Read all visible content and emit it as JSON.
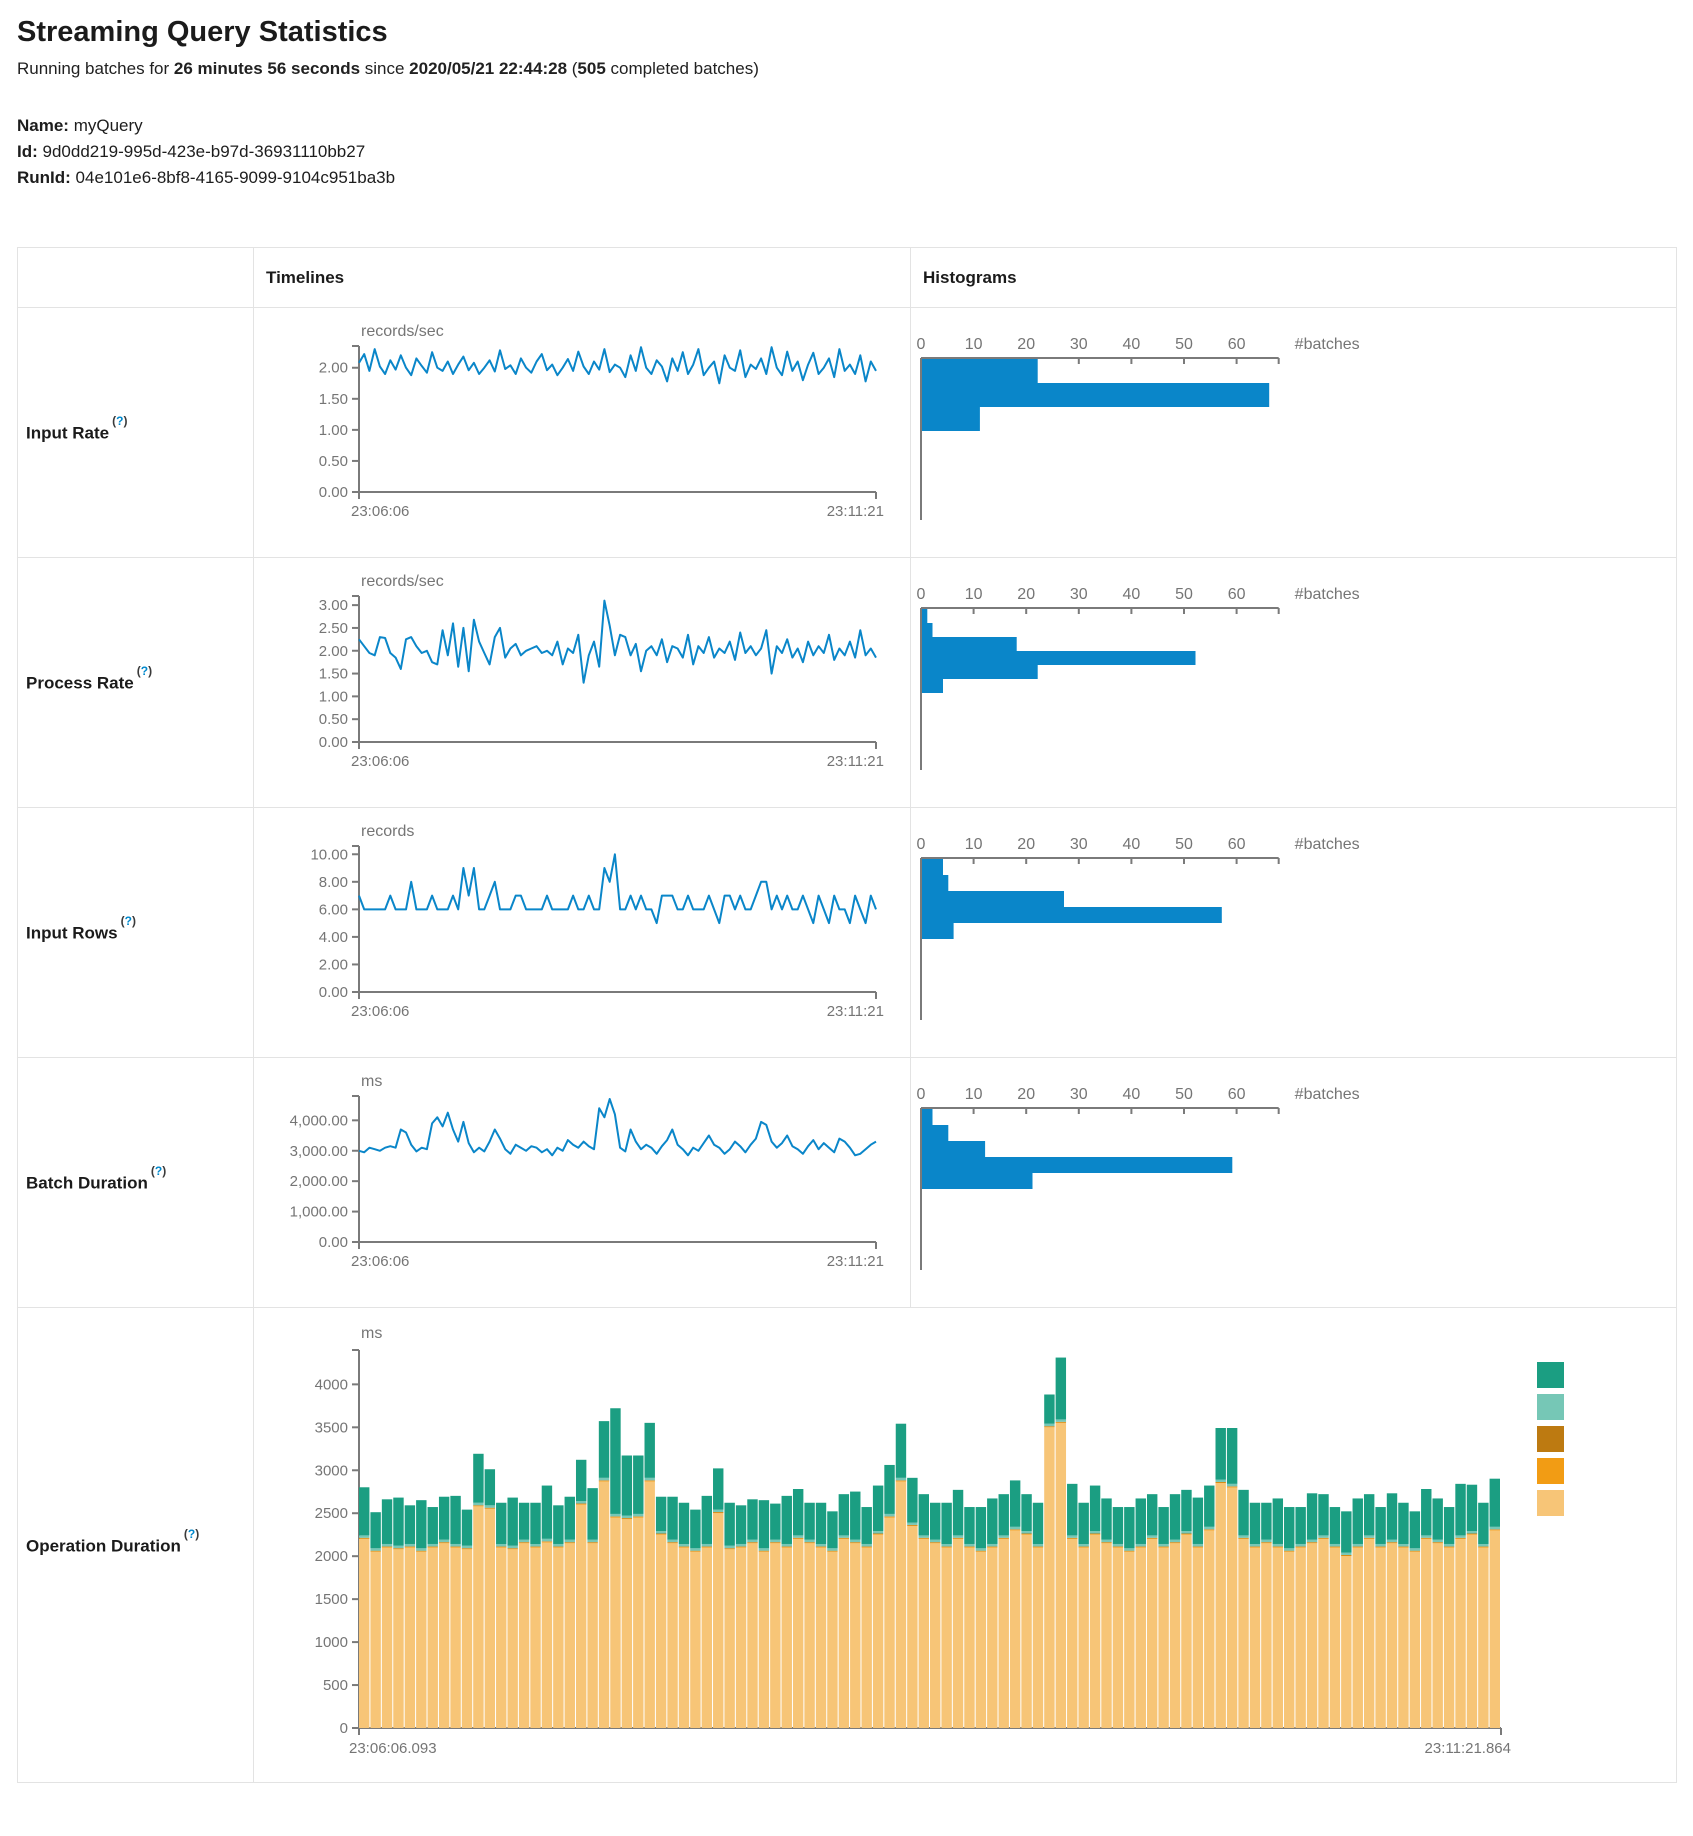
{
  "header": {
    "title": "Streaming Query Statistics",
    "subtitle": {
      "prefix": "Running batches for ",
      "duration": "26 minutes 56 seconds",
      "mid": " since ",
      "start_time": "2020/05/21 22:44:28",
      "paren": " (",
      "count": "505",
      "suffix": " completed batches)"
    },
    "meta": {
      "name_label": "Name:",
      "name_value": " myQuery",
      "id_label": "Id:",
      "id_value": " 9d0dd219-995d-423e-b97d-36931110bb27",
      "runid_label": "RunId:",
      "runid_value": " 04e101e6-8bf8-4165-9099-9104c951ba3b"
    }
  },
  "table": {
    "timelines_header": "Timelines",
    "histograms_header": "Histograms",
    "help": {
      "open": "(",
      "q": "?",
      "close": ")"
    },
    "rows": [
      {
        "label": "Input Rate"
      },
      {
        "label": "Process Rate"
      },
      {
        "label": "Input Rows"
      },
      {
        "label": "Batch Duration"
      },
      {
        "label": "Operation Duration"
      }
    ]
  },
  "colors": {
    "line": "#0a86c9",
    "hist_bar": "#0a86c9",
    "axis": "#7a7a7a",
    "tick_text": "#757575",
    "teal": "#1b9e82",
    "light_teal": "#76c7b6",
    "dark_orange": "#bd7a11",
    "orange": "#f29c14",
    "tan": "#f7c577"
  },
  "chart_data": [
    {
      "name": "input-rate",
      "timeline": {
        "type": "line",
        "unit": "records/sec",
        "x_start": "23:06:06",
        "x_end": "23:11:21",
        "ylim": [
          0,
          2.35
        ],
        "yticks": [
          0,
          0.5,
          1,
          1.5,
          2
        ],
        "ytick_labels": [
          "0.00",
          "0.50",
          "1.00",
          "1.50",
          "2.00"
        ],
        "values": [
          2.08,
          2.22,
          1.95,
          2.3,
          2.02,
          1.9,
          2.12,
          1.97,
          2.2,
          2.0,
          1.88,
          2.15,
          2.03,
          1.92,
          2.25,
          2.0,
          1.95,
          2.1,
          1.9,
          2.05,
          2.18,
          1.96,
          2.08,
          1.9,
          2.0,
          2.12,
          1.94,
          2.28,
          1.98,
          2.04,
          1.9,
          2.15,
          2.0,
          1.92,
          2.1,
          2.22,
          1.96,
          2.05,
          1.88,
          2.0,
          2.14,
          1.95,
          2.26,
          2.02,
          1.9,
          2.1,
          1.97,
          2.3,
          1.93,
          2.05,
          2.0,
          1.85,
          2.2,
          1.95,
          2.33,
          2.0,
          1.9,
          2.12,
          2.02,
          1.78,
          2.15,
          1.95,
          2.25,
          1.9,
          2.05,
          2.3,
          1.88,
          2.0,
          2.1,
          1.75,
          2.2,
          2.0,
          1.95,
          2.28,
          1.85,
          2.05,
          1.98,
          2.15,
          1.9,
          2.33,
          2.0,
          1.88,
          2.26,
          1.95,
          2.1,
          1.8,
          2.05,
          2.24,
          1.9,
          2.0,
          2.15,
          1.85,
          2.3,
          1.95,
          2.05,
          1.9,
          2.2,
          1.78,
          2.1,
          1.95
        ]
      },
      "histogram": {
        "type": "bar",
        "xlabel": "#batches",
        "xticks": [
          0,
          10,
          20,
          30,
          40,
          50,
          60
        ],
        "xlim": [
          0,
          68
        ],
        "bars": [
          22,
          66,
          11
        ],
        "bar_thickness": 24
      }
    },
    {
      "name": "process-rate",
      "timeline": {
        "type": "line",
        "unit": "records/sec",
        "x_start": "23:06:06",
        "x_end": "23:11:21",
        "ylim": [
          0,
          3.2
        ],
        "yticks": [
          0,
          0.5,
          1,
          1.5,
          2,
          2.5,
          3
        ],
        "ytick_labels": [
          "0.00",
          "0.50",
          "1.00",
          "1.50",
          "2.00",
          "2.50",
          "3.00"
        ],
        "values": [
          2.25,
          2.1,
          1.95,
          1.9,
          2.3,
          2.28,
          1.95,
          1.85,
          1.6,
          2.25,
          2.3,
          2.1,
          1.95,
          2.0,
          1.75,
          1.7,
          2.45,
          1.9,
          2.6,
          1.65,
          2.5,
          1.55,
          2.68,
          2.2,
          1.95,
          1.7,
          2.3,
          2.5,
          1.85,
          2.05,
          2.15,
          1.9,
          2.0,
          2.05,
          2.1,
          1.95,
          2.0,
          1.9,
          2.2,
          1.7,
          2.05,
          1.95,
          2.35,
          1.3,
          1.9,
          2.2,
          1.65,
          3.1,
          2.55,
          1.9,
          2.35,
          2.3,
          1.9,
          2.15,
          1.55,
          2.0,
          2.1,
          1.9,
          2.25,
          1.75,
          2.1,
          2.05,
          1.85,
          2.35,
          1.7,
          2.1,
          1.95,
          2.3,
          1.85,
          2.05,
          1.95,
          2.2,
          1.8,
          2.4,
          1.95,
          2.1,
          1.9,
          2.05,
          2.45,
          1.5,
          2.1,
          1.95,
          2.25,
          1.85,
          2.05,
          1.75,
          2.2,
          1.9,
          2.1,
          1.95,
          2.35,
          1.8,
          2.05,
          1.9,
          2.2,
          1.85,
          2.45,
          1.9,
          2.05,
          1.85
        ]
      },
      "histogram": {
        "type": "bar",
        "xlabel": "#batches",
        "xticks": [
          0,
          10,
          20,
          30,
          40,
          50,
          60
        ],
        "xlim": [
          0,
          68
        ],
        "bars": [
          1,
          2,
          18,
          52,
          22,
          4
        ],
        "bar_thickness": 14
      }
    },
    {
      "name": "input-rows",
      "timeline": {
        "type": "line",
        "unit": "records",
        "x_start": "23:06:06",
        "x_end": "23:11:21",
        "ylim": [
          0,
          10.6
        ],
        "yticks": [
          0,
          2,
          4,
          6,
          8,
          10
        ],
        "ytick_labels": [
          "0.00",
          "2.00",
          "4.00",
          "6.00",
          "8.00",
          "10.00"
        ],
        "values": [
          7,
          6,
          6,
          6,
          6,
          6,
          7,
          6,
          6,
          6,
          8,
          6,
          6,
          6,
          7,
          6,
          6,
          6,
          7,
          6,
          9,
          7,
          9,
          6,
          6,
          7,
          8,
          6,
          6,
          6,
          7,
          7,
          6,
          6,
          6,
          6,
          7,
          6,
          6,
          6,
          6,
          7,
          6,
          6,
          7,
          6,
          6,
          9,
          8,
          10,
          6,
          6,
          7,
          6,
          7,
          6,
          6,
          5,
          7,
          7,
          7,
          6,
          6,
          7,
          6,
          6,
          6,
          7,
          6,
          5,
          7,
          7,
          6,
          7,
          6,
          6,
          7,
          8,
          8,
          6,
          7,
          6,
          7,
          6,
          6,
          7,
          6,
          5,
          7,
          6,
          5,
          7,
          6,
          6,
          5,
          7,
          6,
          5,
          7,
          6
        ]
      },
      "histogram": {
        "type": "bar",
        "xlabel": "#batches",
        "xticks": [
          0,
          10,
          20,
          30,
          40,
          50,
          60
        ],
        "xlim": [
          0,
          68
        ],
        "bars": [
          4,
          5,
          27,
          57,
          6
        ],
        "bar_thickness": 16
      }
    },
    {
      "name": "batch-duration",
      "timeline": {
        "type": "line",
        "unit": "ms",
        "x_start": "23:06:06",
        "x_end": "23:11:21",
        "ylim": [
          0,
          4800
        ],
        "yticks": [
          0,
          1000,
          2000,
          3000,
          4000
        ],
        "ytick_labels": [
          "0.00",
          "1,000.00",
          "2,000.00",
          "3,000.00",
          "4,000.00"
        ],
        "values": [
          3000,
          2950,
          3100,
          3050,
          3000,
          3100,
          3150,
          3100,
          3700,
          3600,
          3200,
          2980,
          3100,
          3050,
          3900,
          4100,
          3800,
          4250,
          3700,
          3300,
          3950,
          3250,
          2950,
          3100,
          2980,
          3300,
          3700,
          3400,
          3050,
          2900,
          3200,
          3100,
          3000,
          3150,
          3100,
          2950,
          3050,
          2850,
          3100,
          3000,
          3350,
          3200,
          3100,
          3300,
          3150,
          3050,
          4400,
          4100,
          4700,
          4200,
          3100,
          2980,
          3700,
          3300,
          3050,
          3200,
          3100,
          2900,
          3150,
          3350,
          3700,
          3200,
          3050,
          2850,
          3100,
          3000,
          3250,
          3500,
          3200,
          3100,
          2900,
          3050,
          3300,
          3150,
          2950,
          3200,
          3400,
          3950,
          3850,
          3300,
          3100,
          3250,
          3500,
          3150,
          3050,
          2900,
          3150,
          3350,
          3050,
          3250,
          3100,
          2950,
          3400,
          3300,
          3100,
          2850,
          2900,
          3050,
          3200,
          3300
        ]
      },
      "histogram": {
        "type": "bar",
        "xlabel": "#batches",
        "xticks": [
          0,
          10,
          20,
          30,
          40,
          50,
          60
        ],
        "xlim": [
          0,
          68
        ],
        "bars": [
          2,
          5,
          12,
          59,
          21
        ],
        "bar_thickness": 16
      }
    },
    {
      "name": "operation-duration",
      "timeline": {
        "type": "stacked-bar",
        "unit": "ms",
        "x_start": "23:06:06.093",
        "x_end": "23:11:21.864",
        "ylim": [
          0,
          4400
        ],
        "yticks": [
          0,
          500,
          1000,
          1500,
          2000,
          2500,
          3000,
          3500,
          4000
        ],
        "ytick_labels": [
          "0",
          "500",
          "1000",
          "1500",
          "2000",
          "2500",
          "3000",
          "3500",
          "4000"
        ],
        "legend_order": [
          "teal",
          "light_teal",
          "dark_orange",
          "orange",
          "tan"
        ],
        "series": [
          {
            "name": "series-tan",
            "color_key": "tan",
            "values": [
              2200,
              2050,
              2100,
              2080,
              2100,
              2050,
              2100,
              2150,
              2100,
              2080,
              2580,
              2550,
              2100,
              2080,
              2150,
              2100,
              2160,
              2100,
              2150,
              2600,
              2150,
              2870,
              2450,
              2430,
              2450,
              2870,
              2250,
              2150,
              2100,
              2050,
              2100,
              2500,
              2080,
              2100,
              2150,
              2050,
              2150,
              2100,
              2200,
              2150,
              2100,
              2050,
              2200,
              2150,
              2100,
              2250,
              2450,
              2870,
              2350,
              2200,
              2150,
              2100,
              2200,
              2100,
              2050,
              2100,
              2200,
              2300,
              2250,
              2100,
              3500,
              3550,
              2200,
              2100,
              2250,
              2150,
              2100,
              2050,
              2100,
              2200,
              2100,
              2150,
              2250,
              2100,
              2300,
              2850,
              2800,
              2200,
              2100,
              2150,
              2100,
              2050,
              2100,
              2150,
              2200,
              2100,
              2000,
              2100,
              2200,
              2100,
              2150,
              2100,
              2050,
              2200,
              2150,
              2100,
              2200,
              2250,
              2100,
              2300
            ]
          },
          {
            "name": "series-orange",
            "color_key": "orange",
            "value_all": 8
          },
          {
            "name": "series-dark-orange",
            "color_key": "dark_orange",
            "value_all": 6
          },
          {
            "name": "series-light-teal",
            "color_key": "light_teal",
            "value_all": 28
          },
          {
            "name": "series-teal",
            "color_key": "teal",
            "values": [
              560,
              420,
              520,
              560,
              450,
              560,
              430,
              500,
              560,
              420,
              570,
              420,
              480,
              560,
              430,
              480,
              620,
              450,
              500,
              480,
              600,
              660,
              1230,
              700,
              680,
              640,
              400,
              500,
              480,
              450,
              560,
              480,
              500,
              450,
              470,
              560,
              420,
              560,
              540,
              430,
              480,
              430,
              480,
              560,
              430,
              530,
              570,
              630,
              520,
              480,
              430,
              480,
              530,
              430,
              480,
              530,
              480,
              540,
              430,
              480,
              340,
              720,
              600,
              480,
              530,
              480,
              430,
              480,
              530,
              480,
              430,
              530,
              480,
              540,
              480,
              600,
              650,
              530,
              480,
              430,
              530,
              480,
              430,
              540,
              480,
              430,
              480,
              530,
              480,
              430,
              540,
              480,
              430,
              540,
              480,
              430,
              600,
              540,
              480,
              560
            ]
          }
        ]
      }
    }
  ]
}
